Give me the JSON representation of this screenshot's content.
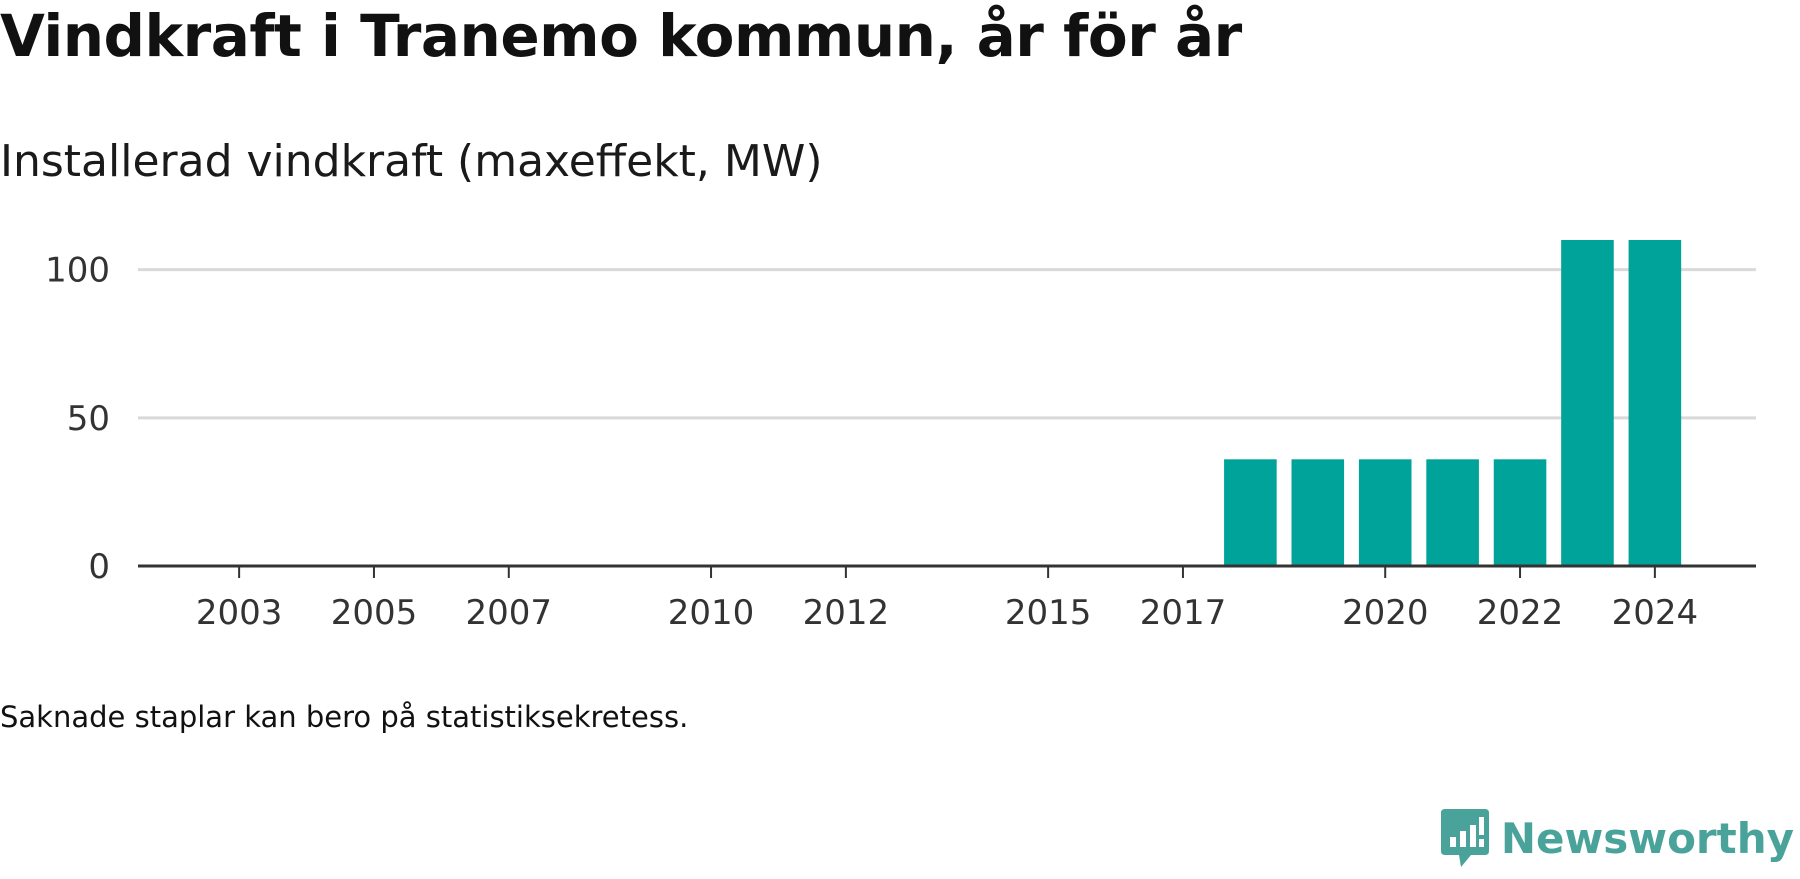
{
  "title": "Vindkraft i Tranemo kommun, år för år",
  "subtitle": "Installerad vindkraft (maxeffekt, MW)",
  "note": "Saknade staplar kan bero på statistiksekretess.",
  "brand": {
    "name": "Newsworthy",
    "icon": "newsworthy-logo-icon",
    "color": "#4aa39a"
  },
  "colors": {
    "bar": "#00a39a",
    "grid": "#d9d9d9",
    "axis": "#333333",
    "tick_label": "#333333"
  },
  "chart_data": {
    "type": "bar",
    "title": "",
    "xlabel": "",
    "ylabel": "",
    "x_range": [
      2001.5,
      2025.5
    ],
    "ylim": [
      0,
      110
    ],
    "y_ticks": [
      0,
      50,
      100
    ],
    "x_ticks": [
      2003,
      2005,
      2007,
      2010,
      2012,
      2015,
      2017,
      2020,
      2022,
      2024
    ],
    "grid": true,
    "legend": "none",
    "categories": [
      2018,
      2019,
      2020,
      2021,
      2022,
      2023,
      2024
    ],
    "values": [
      36,
      36,
      36,
      36,
      36,
      110,
      110
    ]
  }
}
